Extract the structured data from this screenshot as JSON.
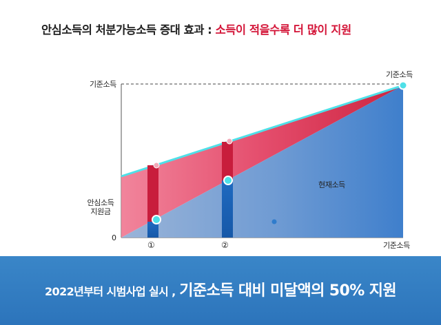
{
  "headline": {
    "lead": "안심소득의 처분가능소득 증대 효과 :",
    "emphasis": "소득이 적을수록 더 많이 지원"
  },
  "diagram": {
    "y_top_label": "기준소득",
    "y_mid_label_1": "안심소득",
    "y_mid_label_2": "지원금",
    "y_zero_label": "0",
    "x_end_label": "기준소득",
    "top_right_label": "기준소득",
    "marker_1": "①",
    "marker_2": "②",
    "region_label": "현재소득",
    "colors": {
      "support_band": "#d8284a",
      "current_income": "#3f7fcc",
      "threshold_line": "#4fe0e8"
    }
  },
  "footer": {
    "lead": "2022년부터 시범사업 실시 ,",
    "main": "기준소득 대비 미달액의 50% 지원"
  }
}
